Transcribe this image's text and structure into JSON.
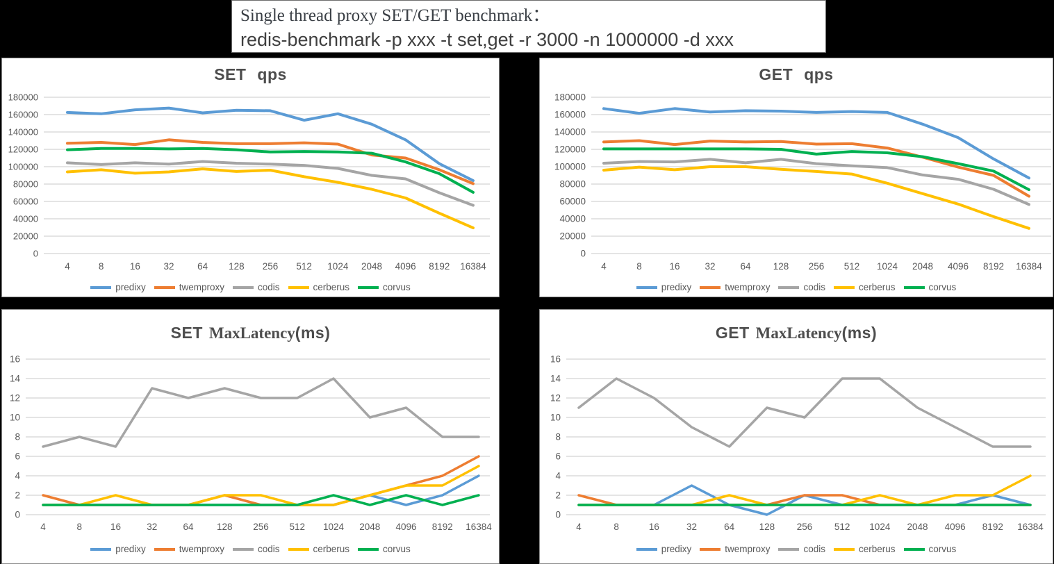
{
  "page_bg": "#000000",
  "panel_bg": "#ffffff",
  "grid_color": "#c9c9c9",
  "axis_text_color": "#595959",
  "title_color": "#4d4d4d",
  "title_box": {
    "line1": "Single thread proxy SET/GET benchmark：",
    "line2": "redis-benchmark -p xxx -t set,get -r 3000 -n 1000000 -d xxx"
  },
  "series_colors": {
    "predixy": "#5B9BD5",
    "twemproxy": "#ED7D31",
    "codis": "#A5A5A5",
    "cerberus": "#FFC000",
    "corvus": "#00B050"
  },
  "legend_entries": [
    "predixy",
    "twemproxy",
    "codis",
    "cerberus",
    "corvus"
  ],
  "chart_data": [
    {
      "id": "set-qps",
      "type": "line",
      "title": {
        "lead": "SET",
        "serif": "",
        "tail": "qps"
      },
      "legend_position": "bottom",
      "grid": "horizontal",
      "ylim": [
        0,
        180000
      ],
      "yticks": [
        0,
        20000,
        40000,
        60000,
        80000,
        100000,
        120000,
        140000,
        160000,
        180000
      ],
      "categories": [
        "4",
        "8",
        "16",
        "32",
        "64",
        "128",
        "256",
        "512",
        "1024",
        "2048",
        "4096",
        "8192",
        "16384"
      ],
      "series": [
        {
          "name": "predixy",
          "values": [
            162500,
            161000,
            165500,
            167500,
            162000,
            165000,
            164500,
            153500,
            161000,
            149000,
            131000,
            103500,
            84000
          ]
        },
        {
          "name": "twemproxy",
          "values": [
            127000,
            128000,
            125500,
            131000,
            128000,
            126500,
            126500,
            127500,
            126000,
            113500,
            110000,
            96500,
            80500
          ]
        },
        {
          "name": "codis",
          "values": [
            104500,
            102500,
            104500,
            103000,
            106000,
            104000,
            103000,
            101500,
            98000,
            90000,
            86000,
            70000,
            55500
          ]
        },
        {
          "name": "cerberus",
          "values": [
            94000,
            96500,
            92500,
            94000,
            97500,
            94500,
            96000,
            88500,
            82000,
            74000,
            64000,
            46500,
            29500
          ]
        },
        {
          "name": "corvus",
          "values": [
            119500,
            121000,
            121000,
            120500,
            121000,
            119500,
            117000,
            117500,
            117000,
            115500,
            105500,
            92000,
            70500
          ]
        }
      ]
    },
    {
      "id": "get-qps",
      "type": "line",
      "title": {
        "lead": "GET",
        "serif": "",
        "tail": "qps"
      },
      "legend_position": "bottom",
      "grid": "horizontal",
      "ylim": [
        0,
        180000
      ],
      "yticks": [
        0,
        20000,
        40000,
        60000,
        80000,
        100000,
        120000,
        140000,
        160000,
        180000
      ],
      "categories": [
        "4",
        "8",
        "16",
        "32",
        "64",
        "128",
        "256",
        "512",
        "1024",
        "2048",
        "4096",
        "8192",
        "16384"
      ],
      "series": [
        {
          "name": "predixy",
          "values": [
            167000,
            161500,
            167000,
            163000,
            164500,
            164000,
            162500,
            163500,
            162500,
            149000,
            133500,
            109000,
            87000
          ]
        },
        {
          "name": "twemproxy",
          "values": [
            128500,
            130000,
            125500,
            129500,
            128500,
            129000,
            126000,
            126500,
            121500,
            111000,
            99500,
            90000,
            66000
          ]
        },
        {
          "name": "codis",
          "values": [
            104000,
            106000,
            105500,
            108500,
            104500,
            108500,
            103500,
            101000,
            99000,
            90500,
            85500,
            74000,
            56500
          ]
        },
        {
          "name": "cerberus",
          "values": [
            96000,
            99500,
            96500,
            100000,
            100000,
            97000,
            94500,
            91500,
            81000,
            69000,
            57000,
            42500,
            29000
          ]
        },
        {
          "name": "corvus",
          "values": [
            120500,
            120500,
            120500,
            120500,
            120500,
            120000,
            114500,
            117500,
            116000,
            111500,
            103500,
            95000,
            73500
          ]
        }
      ]
    },
    {
      "id": "set-lat",
      "type": "line",
      "title": {
        "lead": "SET",
        "serif": "MaxLatency",
        "tail": "(ms)"
      },
      "legend_position": "bottom",
      "grid": "horizontal",
      "ylim": [
        0,
        16
      ],
      "yticks": [
        0,
        2,
        4,
        6,
        8,
        10,
        12,
        14,
        16
      ],
      "categories": [
        "4",
        "8",
        "16",
        "32",
        "64",
        "128",
        "256",
        "512",
        "1024",
        "2048",
        "4096",
        "8192",
        "16384"
      ],
      "series": [
        {
          "name": "predixy",
          "values": [
            1,
            1,
            1,
            1,
            1,
            1,
            1,
            1,
            1,
            2,
            1,
            2,
            4
          ]
        },
        {
          "name": "twemproxy",
          "values": [
            2,
            1,
            1,
            1,
            1,
            2,
            1,
            1,
            1,
            2,
            3,
            4,
            6
          ]
        },
        {
          "name": "codis",
          "values": [
            7,
            8,
            7,
            13,
            12,
            13,
            12,
            12,
            14,
            10,
            11,
            8,
            8
          ]
        },
        {
          "name": "cerberus",
          "values": [
            1,
            1,
            2,
            1,
            1,
            2,
            2,
            1,
            1,
            2,
            3,
            3,
            5
          ]
        },
        {
          "name": "corvus",
          "values": [
            1,
            1,
            1,
            1,
            1,
            1,
            1,
            1,
            2,
            1,
            2,
            1,
            2
          ]
        }
      ]
    },
    {
      "id": "get-lat",
      "type": "line",
      "title": {
        "lead": "GET",
        "serif": "MaxLatency",
        "tail": "(ms)"
      },
      "legend_position": "bottom",
      "grid": "horizontal",
      "ylim": [
        0,
        16
      ],
      "yticks": [
        0,
        2,
        4,
        6,
        8,
        10,
        12,
        14,
        16
      ],
      "categories": [
        "4",
        "8",
        "16",
        "32",
        "64",
        "128",
        "256",
        "512",
        "1024",
        "2048",
        "4096",
        "8192",
        "16384"
      ],
      "series": [
        {
          "name": "predixy",
          "values": [
            1,
            1,
            1,
            3,
            1,
            0,
            2,
            1,
            1,
            1,
            1,
            2,
            1
          ]
        },
        {
          "name": "twemproxy",
          "values": [
            2,
            1,
            1,
            1,
            1,
            1,
            2,
            2,
            1,
            1,
            1,
            1,
            1
          ]
        },
        {
          "name": "codis",
          "values": [
            11,
            14,
            12,
            9,
            7,
            11,
            10,
            14,
            14,
            11,
            9,
            7,
            7
          ]
        },
        {
          "name": "cerberus",
          "values": [
            1,
            1,
            1,
            1,
            2,
            1,
            1,
            1,
            2,
            1,
            2,
            2,
            4
          ]
        },
        {
          "name": "corvus",
          "values": [
            1,
            1,
            1,
            1,
            1,
            1,
            1,
            1,
            1,
            1,
            1,
            1,
            1
          ]
        }
      ]
    }
  ]
}
